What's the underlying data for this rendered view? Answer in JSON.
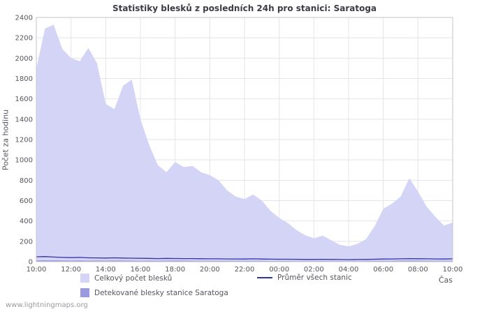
{
  "footer": {
    "watermark": "www.lightningmaps.org"
  },
  "colors": {
    "background": "#ffffff",
    "grid": "#e4e4ea",
    "plot_border": "#c6c6cc",
    "title_text": "#3c3c46",
    "axis_text": "#55555f",
    "area_total": "#d4d4f6",
    "area_station": "#9a9ae0",
    "avg_line": "#3333a0"
  },
  "chart_data": {
    "type": "area",
    "title": "Statistiky blesků z posledních 24h pro stanici: Saratoga",
    "ylabel": "Počet za hodinu",
    "xlabel": "Čas",
    "ylim": [
      0,
      2400
    ],
    "y_tick_step": 200,
    "grid": true,
    "legend_position": "bottom",
    "x_ticks": [
      "10:00",
      "12:00",
      "14:00",
      "16:00",
      "18:00",
      "20:00",
      "22:00",
      "00:00",
      "02:00",
      "04:00",
      "06:00",
      "08:00",
      "10:00"
    ],
    "x_span_hours": 24,
    "sample_interval_minutes": 30,
    "series": [
      {
        "name": "Celkový počet blesků",
        "type": "area",
        "color": "#d4d4f6",
        "values": [
          1900,
          2290,
          2330,
          2090,
          2000,
          1970,
          2100,
          1950,
          1550,
          1500,
          1730,
          1790,
          1400,
          1150,
          950,
          880,
          980,
          930,
          940,
          880,
          850,
          800,
          700,
          640,
          615,
          660,
          600,
          500,
          430,
          380,
          310,
          260,
          230,
          255,
          210,
          165,
          150,
          175,
          220,
          350,
          520,
          570,
          640,
          820,
          690,
          540,
          440,
          355,
          385
        ]
      },
      {
        "name": "Detekované blesky stanice Saratoga",
        "type": "area",
        "color": "#9a9ae0",
        "values": [
          12,
          14,
          13,
          12,
          11,
          12,
          10,
          11,
          10,
          12,
          11,
          10,
          9,
          10,
          9,
          10,
          11,
          10,
          9,
          9,
          8,
          9,
          8,
          8,
          8,
          9,
          8,
          7,
          7,
          7,
          6,
          6,
          6,
          7,
          6,
          6,
          5,
          6,
          6,
          8,
          9,
          9,
          10,
          11,
          10,
          9,
          9,
          8,
          9
        ]
      },
      {
        "name": "Průměr všech stanic",
        "type": "line",
        "color": "#3333a0",
        "values": [
          48,
          50,
          45,
          42,
          40,
          42,
          38,
          37,
          36,
          38,
          36,
          34,
          33,
          32,
          30,
          32,
          31,
          30,
          30,
          29,
          28,
          28,
          27,
          27,
          26,
          28,
          26,
          25,
          24,
          24,
          23,
          22,
          22,
          23,
          22,
          21,
          20,
          21,
          22,
          24,
          26,
          27,
          28,
          30,
          29,
          28,
          27,
          26,
          28
        ]
      }
    ]
  }
}
